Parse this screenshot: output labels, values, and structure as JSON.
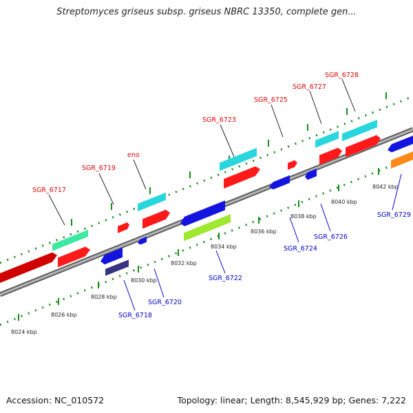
{
  "title": "Streptomyces griseus subsp. griseus NBRC 13350, complete gen...",
  "accession": "Accession: NC_010572",
  "topology": "Topology: linear; Length: 8,545,929 bp; Genes: 7,222",
  "colors": {
    "forward_label": "#e00000",
    "reverse_label": "#0000c8",
    "backbone": "#8a8a8a",
    "tick": "#1a8a1a"
  },
  "kbp_labels": [
    "8024 kbp",
    "8026 kbp",
    "8028 kbp",
    "8030 kbp",
    "8032 kbp",
    "8034 kbp",
    "8036 kbp",
    "8038 kbp",
    "8040 kbp",
    "8042 kbp"
  ],
  "forward_gene_labels": [
    "SGR_6717",
    "SGR_6719",
    "eno",
    "SGR_6723",
    "SGR_6725",
    "SGR_6727",
    "SGR_6728"
  ],
  "reverse_gene_labels": [
    "SGR_6718",
    "SGR_6720",
    "SGR_6722",
    "SGR_6724",
    "SGR_6726",
    "SGR_6729"
  ]
}
